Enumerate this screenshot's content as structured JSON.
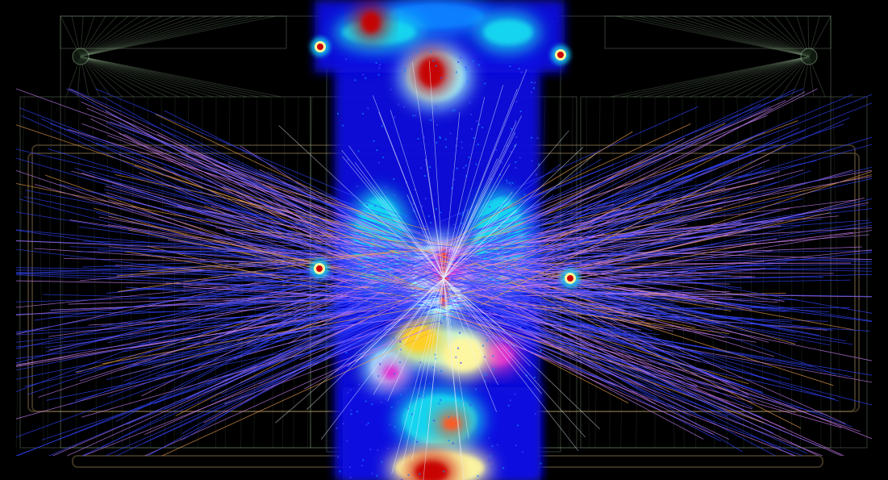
{
  "scene": {
    "background": "#000000",
    "geometry_color": "#8fb08a",
    "detector_frame_color": "#6a5a3a",
    "track_colors": [
      "#3344ff",
      "#c07cf0",
      "#f0a050",
      "#e080ff",
      "#c8b0ff"
    ],
    "heatmap_palette": [
      "#0a10e0",
      "#1080ff",
      "#18d8f0",
      "#9ff6ff",
      "#fff8a0",
      "#ffd020",
      "#ff5a20",
      "#c80000",
      "#e030d0"
    ]
  }
}
